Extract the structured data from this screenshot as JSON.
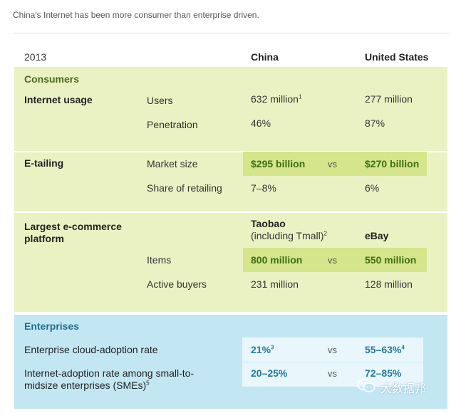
{
  "caption": "China's Internet has been more consumer than enterprise driven.",
  "header": {
    "year": "2013",
    "china": "China",
    "us": "United States"
  },
  "consumers": {
    "title": "Consumers",
    "internet_usage": {
      "label": "Internet usage",
      "users": {
        "metric": "Users",
        "china": "632 million",
        "china_note": "1",
        "us": "277 million"
      },
      "penetration": {
        "metric": "Penetration",
        "china": "46%",
        "us": "87%"
      }
    },
    "etailing": {
      "label": "E-tailing",
      "market_size": {
        "metric": "Market size",
        "china": "$295 billion",
        "vs": "vs",
        "us": "$270 billion"
      },
      "share": {
        "metric": "Share of retailing",
        "china": "7–8%",
        "us": "6%"
      }
    },
    "largest_platform": {
      "label_line1": "Largest e-commerce",
      "label_line2": "platform",
      "china_name": "Taobao",
      "china_sub": "(including Tmall)",
      "china_note": "2",
      "us_name": "eBay",
      "items": {
        "metric": "Items",
        "china": "800 million",
        "vs": "vs",
        "us": "550 million"
      },
      "buyers": {
        "metric": "Active buyers",
        "china": "231 million",
        "us": "128 million"
      }
    }
  },
  "enterprises": {
    "title": "Enterprises",
    "cloud": {
      "label": "Enterprise cloud-adoption rate",
      "china": "21%",
      "china_note": "3",
      "vs": "vs",
      "us": "55–63%",
      "us_note": "4"
    },
    "sme": {
      "label_line1": "Internet-adoption rate among small-to-",
      "label_line2": "midsize enterprises (SMEs)",
      "label_note": "5",
      "china": "20–25%",
      "vs": "vs",
      "us": "72–85%"
    }
  },
  "watermark": {
    "text": "大数据邦",
    "icon": "wechat-icon"
  }
}
